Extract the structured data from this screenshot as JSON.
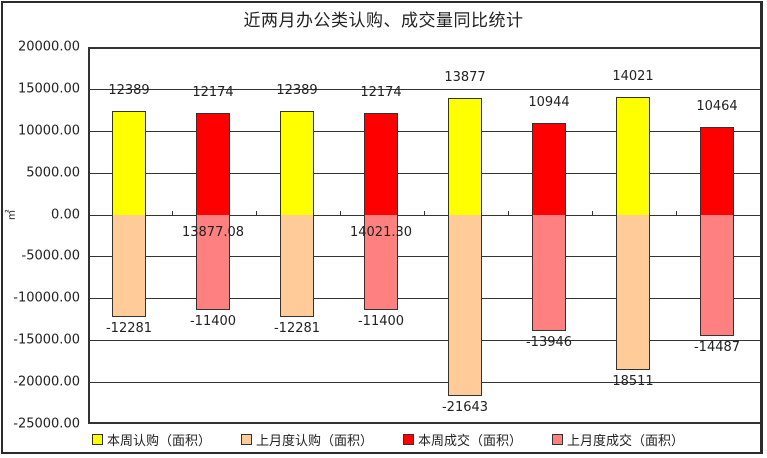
{
  "chart_data": {
    "type": "bar",
    "title": "近两月办公类认购、成交量同比统计",
    "xlabel": "",
    "ylabel": "㎡",
    "ylim": [
      -25000,
      20000
    ],
    "yticks": [
      "20000.00",
      "15000.00",
      "10000.00",
      "5000.00",
      "0.00",
      "-5000.00",
      "-10000.00",
      "-15000.00",
      "-20000.00",
      "-25000.00"
    ],
    "grid": true,
    "legend_position": "bottom",
    "series": [
      {
        "name": "本周认购（面积）",
        "color": "#FFFF00",
        "values": [
          12389,
          null,
          12389,
          null,
          13877,
          null,
          14021,
          null
        ]
      },
      {
        "name": "上月度认购（面积）",
        "color": "#FFCC99",
        "values": [
          -12281,
          null,
          -12281,
          null,
          -21643,
          null,
          -18511,
          null
        ]
      },
      {
        "name": "本周成交（面积）",
        "color": "#FF0000",
        "values": [
          null,
          12174,
          null,
          12174,
          null,
          10944,
          null,
          10464
        ]
      },
      {
        "name": "上月度成交（面积）",
        "color": "#FF8080",
        "values": [
          null,
          -11400,
          null,
          -11400,
          null,
          -13946,
          null,
          -14487
        ]
      }
    ],
    "bars": [
      {
        "pos": 12389,
        "pos_label": "12389",
        "neg": -12281,
        "neg_label": "-12281",
        "pos_color": "#FFFF00",
        "neg_color": "#FFCC99"
      },
      {
        "pos": 12174,
        "pos_label": "12174",
        "neg": -11400,
        "neg_label": "-11400",
        "pos_color": "#FF0000",
        "neg_color": "#FF8080",
        "extra_label": "13877.08"
      },
      {
        "pos": 12389,
        "pos_label": "12389",
        "neg": -12281,
        "neg_label": "-12281",
        "pos_color": "#FFFF00",
        "neg_color": "#FFCC99"
      },
      {
        "pos": 12174,
        "pos_label": "12174",
        "neg": -11400,
        "neg_label": "-11400",
        "pos_color": "#FF0000",
        "neg_color": "#FF8080",
        "extra_label": "14021.30"
      },
      {
        "pos": 13877,
        "pos_label": "13877",
        "neg": -21643,
        "neg_label": "-21643",
        "pos_color": "#FFFF00",
        "neg_color": "#FFCC99"
      },
      {
        "pos": 10944,
        "pos_label": "10944",
        "neg": -13946,
        "neg_label": "-13946",
        "pos_color": "#FF0000",
        "neg_color": "#FF8080"
      },
      {
        "pos": 14021,
        "pos_label": "14021",
        "neg": -18511,
        "neg_label": "18511",
        "pos_color": "#FFFF00",
        "neg_color": "#FFCC99"
      },
      {
        "pos": 10464,
        "pos_label": "10464",
        "neg": -14487,
        "neg_label": "-14487",
        "pos_color": "#FF0000",
        "neg_color": "#FF8080"
      }
    ]
  },
  "legend": [
    {
      "label": "本周认购（面积）",
      "color": "#FFFF00"
    },
    {
      "label": "上月度认购（面积）",
      "color": "#FFCC99"
    },
    {
      "label": "本周成交（面积）",
      "color": "#FF0000"
    },
    {
      "label": "上月度成交（面积）",
      "color": "#FF8080"
    }
  ]
}
